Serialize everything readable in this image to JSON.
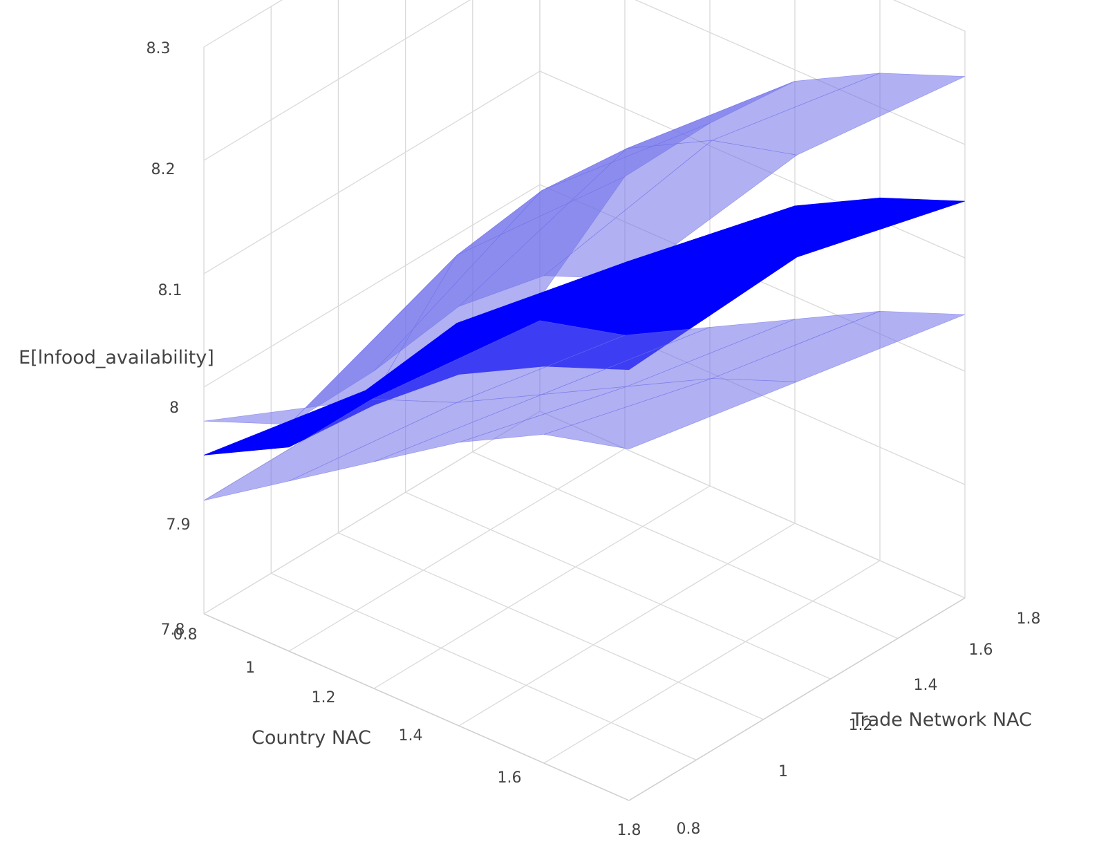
{
  "chart_data": {
    "type": "surface",
    "title": "",
    "xlabel": "Country NAC",
    "ylabel": "Trade Network NAC",
    "zlabel": "E[lnfood_availability]",
    "xlim": [
      0.8,
      1.8
    ],
    "ylim": [
      0.8,
      1.8
    ],
    "zlim": [
      7.8,
      8.3
    ],
    "x_ticks": [
      "0.8",
      "1",
      "1.2",
      "1.4",
      "1.6",
      "1.8"
    ],
    "y_ticks": [
      "0.8",
      "1",
      "1.2",
      "1.4",
      "1.6",
      "1.8"
    ],
    "z_ticks": [
      "7.8",
      "7.9",
      "8",
      "8.1",
      "8.2",
      "8.3"
    ],
    "grid": true,
    "legend": false,
    "x_grid": [
      0.8,
      1.0,
      1.2,
      1.4,
      1.6,
      1.8
    ],
    "y_grid": [
      0.8,
      1.3,
      1.8
    ],
    "series": [
      {
        "role": "upper",
        "color": "#6f70ea",
        "opacity": 0.55,
        "z": [
          [
            7.97,
            7.9,
            7.9
          ],
          [
            8.0,
            8.06,
            8.04
          ],
          [
            8.08,
            8.15,
            8.12
          ],
          [
            8.17,
            8.22,
            8.19
          ],
          [
            8.23,
            8.26,
            8.23
          ],
          [
            8.26,
            8.28,
            8.26
          ]
        ]
      },
      {
        "role": "mean",
        "color": "#0000ff",
        "opacity": 1.0,
        "z": [
          [
            7.94,
            7.91,
            7.89
          ],
          [
            7.98,
            8.0,
            7.96
          ],
          [
            8.05,
            8.06,
            8.02
          ],
          [
            8.11,
            8.12,
            8.08
          ],
          [
            8.15,
            8.16,
            8.12
          ],
          [
            8.18,
            8.19,
            8.15
          ]
        ]
      },
      {
        "role": "lower",
        "color": "#6f70ea",
        "opacity": 0.55,
        "z": [
          [
            7.9,
            7.9,
            7.88
          ],
          [
            7.95,
            7.93,
            7.9
          ],
          [
            8.0,
            7.97,
            7.94
          ],
          [
            8.05,
            8.01,
            7.98
          ],
          [
            8.09,
            8.05,
            8.02
          ],
          [
            8.11,
            8.08,
            8.05
          ]
        ]
      }
    ]
  }
}
